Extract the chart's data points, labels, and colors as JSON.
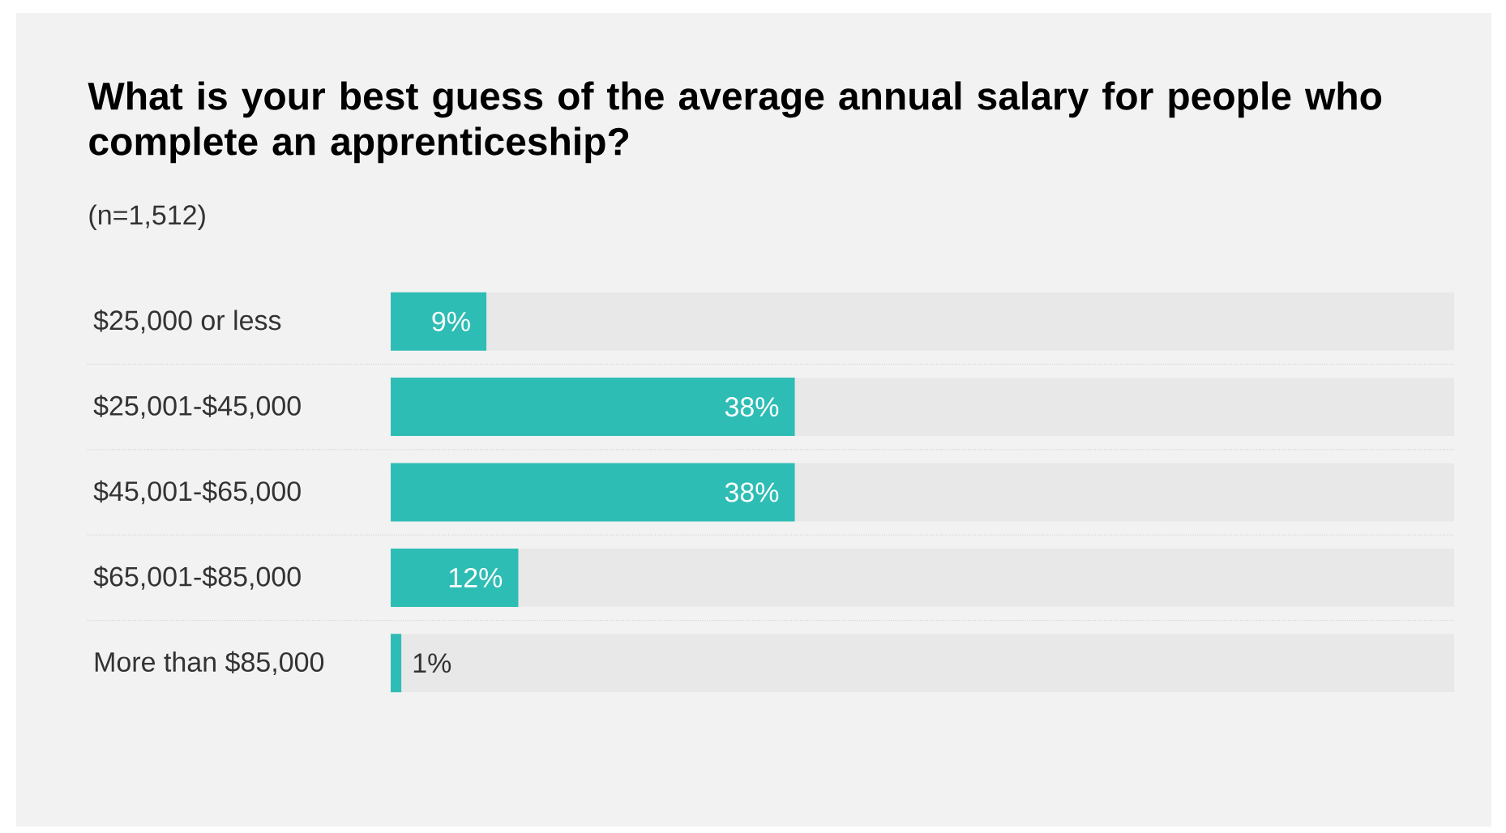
{
  "chart_data": {
    "type": "bar",
    "orientation": "horizontal",
    "title": "What is your best guess of the average annual salary for people who complete an apprenticeship?",
    "subtitle": "(n=1,512)",
    "categories": [
      "$25,000 or less",
      "$25,001-$45,000",
      "$45,001-$65,000",
      "$65,001-$85,000",
      "More than $85,000"
    ],
    "values": [
      9,
      38,
      38,
      12,
      1
    ],
    "value_labels": [
      "9%",
      "38%",
      "38%",
      "12%",
      "1%"
    ],
    "color": "#2ebdb5",
    "xlim": [
      0,
      100
    ],
    "tick_labels": "y"
  }
}
